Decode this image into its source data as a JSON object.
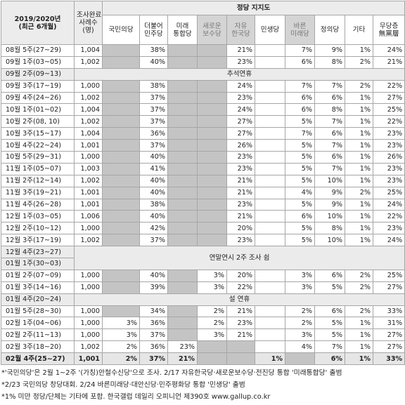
{
  "header": {
    "period": [
      "2019/2020년",
      "(최근 6개월)"
    ],
    "sample": [
      "조사완료",
      "사례수",
      "(명)"
    ],
    "group": "정당 지지도",
    "parties": [
      {
        "name": [
          "국민의당"
        ]
      },
      {
        "name": [
          "더불어",
          "민주당"
        ]
      },
      {
        "name": [
          "미래",
          "통합당"
        ]
      },
      {
        "name": [
          "새로운",
          "보수당"
        ],
        "shaded": true
      },
      {
        "name": [
          "자유",
          "한국당"
        ],
        "shaded": true
      },
      {
        "name": [
          "민생당"
        ]
      },
      {
        "name": [
          "바른",
          "미래당"
        ],
        "shaded": true
      },
      {
        "name": [
          "정의당"
        ]
      },
      {
        "name": [
          "기타"
        ]
      },
      {
        "name": [
          "무당층",
          "無黨層"
        ]
      }
    ]
  },
  "rows": [
    {
      "period": "08월 5주(27~29)",
      "sample": "1,004",
      "values": [
        null,
        "38%",
        null,
        null,
        "21%",
        null,
        "7%",
        "9%",
        "1%",
        "24%"
      ]
    },
    {
      "period": "09월 1주(03~05)",
      "sample": "1,002",
      "values": [
        null,
        "40%",
        null,
        null,
        "23%",
        null,
        "6%",
        "8%",
        "2%",
        "21%"
      ]
    },
    {
      "periods": [
        "09월 2주(09~13)"
      ],
      "note": "추석연휴"
    },
    {
      "period": "09월 3주(17~19)",
      "sample": "1,000",
      "values": [
        null,
        "38%",
        null,
        null,
        "24%",
        null,
        "7%",
        "7%",
        "2%",
        "22%"
      ]
    },
    {
      "period": "09월 4주(24~26)",
      "sample": "1,002",
      "values": [
        null,
        "37%",
        null,
        null,
        "23%",
        null,
        "6%",
        "6%",
        "1%",
        "27%"
      ]
    },
    {
      "period": "10월 1주(01~02)",
      "sample": "1,004",
      "values": [
        null,
        "37%",
        null,
        null,
        "24%",
        null,
        "6%",
        "8%",
        "1%",
        "25%"
      ]
    },
    {
      "period": "10월 2주(08, 10)",
      "sample": "1,002",
      "values": [
        null,
        "37%",
        null,
        null,
        "27%",
        null,
        "5%",
        "7%",
        "1%",
        "22%"
      ]
    },
    {
      "period": "10월 3주(15~17)",
      "sample": "1,004",
      "values": [
        null,
        "36%",
        null,
        null,
        "27%",
        null,
        "7%",
        "6%",
        "1%",
        "23%"
      ]
    },
    {
      "period": "10월 4주(22~24)",
      "sample": "1,001",
      "values": [
        null,
        "37%",
        null,
        null,
        "26%",
        null,
        "5%",
        "7%",
        "1%",
        "23%"
      ]
    },
    {
      "period": "10월 5주(29~31)",
      "sample": "1,000",
      "values": [
        null,
        "40%",
        null,
        null,
        "23%",
        null,
        "5%",
        "6%",
        "1%",
        "26%"
      ]
    },
    {
      "period": "11월 1주(05~07)",
      "sample": "1,003",
      "values": [
        null,
        "41%",
        null,
        null,
        "23%",
        null,
        "5%",
        "7%",
        "1%",
        "23%"
      ]
    },
    {
      "period": "11월 2주(12~14)",
      "sample": "1,002",
      "values": [
        null,
        "40%",
        null,
        null,
        "21%",
        null,
        "5%",
        "10%",
        "1%",
        "23%"
      ]
    },
    {
      "period": "11월 3주(19~21)",
      "sample": "1,001",
      "values": [
        null,
        "40%",
        null,
        null,
        "21%",
        null,
        "4%",
        "9%",
        "2%",
        "25%"
      ]
    },
    {
      "period": "11월 4주(26~28)",
      "sample": "1,001",
      "values": [
        null,
        "38%",
        null,
        null,
        "23%",
        null,
        "5%",
        "9%",
        "1%",
        "24%"
      ]
    },
    {
      "period": "12월 1주(03~05)",
      "sample": "1,006",
      "values": [
        null,
        "40%",
        null,
        null,
        "21%",
        null,
        "6%",
        "10%",
        "1%",
        "22%"
      ]
    },
    {
      "period": "12월 2주(10~12)",
      "sample": "1,000",
      "values": [
        null,
        "42%",
        null,
        null,
        "20%",
        null,
        "5%",
        "8%",
        "1%",
        "23%"
      ]
    },
    {
      "period": "12월 3주(17~19)",
      "sample": "1,002",
      "values": [
        null,
        "37%",
        null,
        null,
        "23%",
        null,
        "5%",
        "10%",
        "1%",
        "24%"
      ]
    },
    {
      "periods": [
        "12월 4주(23~27)",
        "01월 1주(30~03)"
      ],
      "note": "연말연시 2주 조사 쉼"
    },
    {
      "period": "01월 2주(07~09)",
      "sample": "1,000",
      "values": [
        null,
        "40%",
        null,
        "3%",
        "20%",
        null,
        "3%",
        "6%",
        "2%",
        "25%"
      ]
    },
    {
      "period": "01월 3주(14~16)",
      "sample": "1,000",
      "values": [
        null,
        "39%",
        null,
        "3%",
        "22%",
        null,
        "3%",
        "5%",
        "2%",
        "27%"
      ]
    },
    {
      "periods": [
        "01월 4주(20~24)"
      ],
      "note": "설 연휴"
    },
    {
      "period": "01월 5주(28~30)",
      "sample": "1,000",
      "values": [
        null,
        "34%",
        null,
        "2%",
        "21%",
        null,
        "2%",
        "6%",
        "2%",
        "33%"
      ]
    },
    {
      "period": "02월 1주(04~06)",
      "sample": "1,000",
      "values": [
        "3%",
        "36%",
        null,
        "2%",
        "23%",
        null,
        "2%",
        "5%",
        "1%",
        "31%"
      ]
    },
    {
      "period": "02월 2주(11~13)",
      "sample": "1,000",
      "values": [
        "3%",
        "37%",
        null,
        "3%",
        "21%",
        null,
        "3%",
        "5%",
        "1%",
        "27%"
      ]
    },
    {
      "period": "02월 3주(18~20)",
      "sample": "1,002",
      "values": [
        "2%",
        "36%",
        "23%",
        null,
        null,
        null,
        "4%",
        "7%",
        "1%",
        "27%"
      ]
    },
    {
      "period": "02월 4주(25~27)",
      "sample": "1,001",
      "values": [
        "2%",
        "37%",
        "21%",
        null,
        null,
        "1%",
        null,
        "6%",
        "1%",
        "33%"
      ],
      "bold": true
    }
  ],
  "footnotes": [
    "*'국민의당'은 2월 1~2주 '(가칭)안철수신당'으로 조사. 2/17 자유한국당·새로운보수당·전진당 통합 '미래통합당' 출범",
    "*2/23 국민의당 창당대회. 2/24 바른미래당·대안신당·민주평화당 통합 '민생당' 출범",
    "*1% 미만 정당/단체는 기타에 포함. 한국갤럽 데일리 오피니언 제390호 www.gallup.co.kr"
  ]
}
